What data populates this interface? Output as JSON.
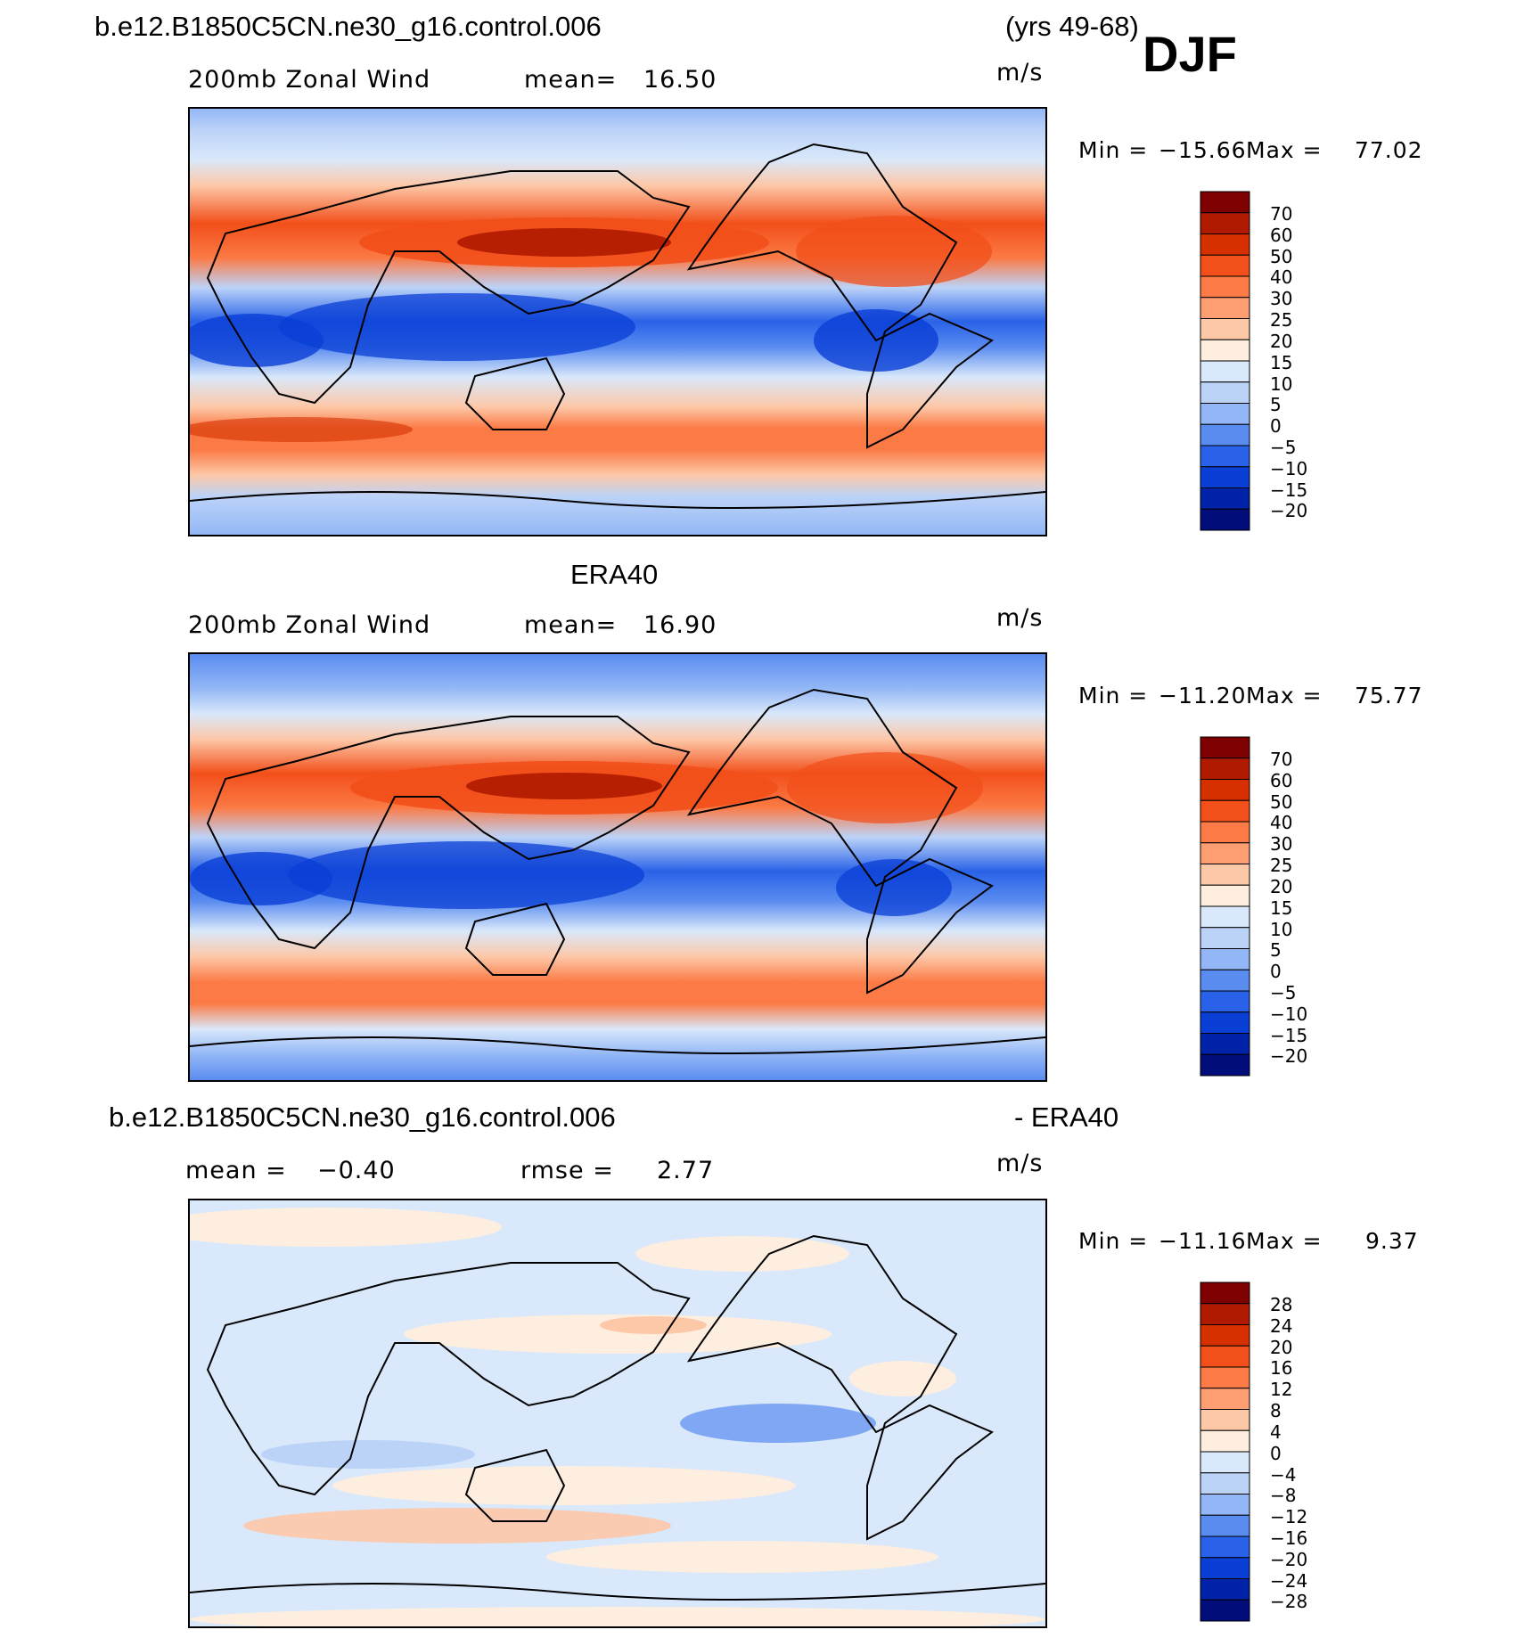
{
  "header": {
    "case_name": "b.e12.B1850C5CN.ne30_g16.control.006",
    "years": "(yrs 49-68)",
    "season": "DJF"
  },
  "panels": [
    {
      "id": "model",
      "field_label": "200mb Zonal Wind",
      "stat_label": "mean=",
      "stat_value": "16.50",
      "units": "m/s",
      "min_label": "Min =",
      "min_value": "−15.66",
      "max_label": "Max =",
      "max_value": "77.02",
      "legend_labels": [
        "70",
        "60",
        "50",
        "40",
        "30",
        "25",
        "20",
        "15",
        "10",
        "5",
        "0",
        "−5",
        "−10",
        "−15",
        "−20"
      ]
    },
    {
      "id": "obs",
      "title": "ERA40",
      "field_label": "200mb Zonal Wind",
      "stat_label": "mean=",
      "stat_value": "16.90",
      "units": "m/s",
      "min_label": "Min =",
      "min_value": "−11.20",
      "max_label": "Max =",
      "max_value": "75.77",
      "legend_labels": [
        "70",
        "60",
        "50",
        "40",
        "30",
        "25",
        "20",
        "15",
        "10",
        "5",
        "0",
        "−5",
        "−10",
        "−15",
        "−20"
      ]
    },
    {
      "id": "diff",
      "title_left": "b.e12.B1850C5CN.ne30_g16.control.006",
      "title_right": "- ERA40",
      "stat_label": "mean =",
      "stat_value": "−0.40",
      "rmse_label": "rmse =",
      "rmse_value": "2.77",
      "units": "m/s",
      "min_label": "Min =",
      "min_value": "−11.16",
      "max_label": "Max =",
      "max_value": "9.37",
      "legend_labels": [
        "28",
        "24",
        "20",
        "16",
        "12",
        "8",
        "4",
        "0",
        "−4",
        "−8",
        "−12",
        "−16",
        "−20",
        "−24",
        "−28"
      ]
    }
  ],
  "colors": {
    "wind_scale": [
      "#7f0000",
      "#b01a00",
      "#d63000",
      "#f24f1a",
      "#fb7a45",
      "#fd9e72",
      "#fdc8a8",
      "#fdeee0",
      "#d9e8fa",
      "#bcd3f8",
      "#93b7f6",
      "#5a8cf0",
      "#2962e8",
      "#0a3fd6",
      "#0022a8",
      "#000d7a"
    ],
    "diff_scale": [
      "#7f0000",
      "#b01a00",
      "#d63000",
      "#f24f1a",
      "#fb7a45",
      "#fd9e72",
      "#fdc8a8",
      "#fdeee0",
      "#d9e8fa",
      "#bcd3f8",
      "#93b7f6",
      "#5a8cf0",
      "#2962e8",
      "#0a3fd6",
      "#0022a8",
      "#000d7a"
    ]
  }
}
